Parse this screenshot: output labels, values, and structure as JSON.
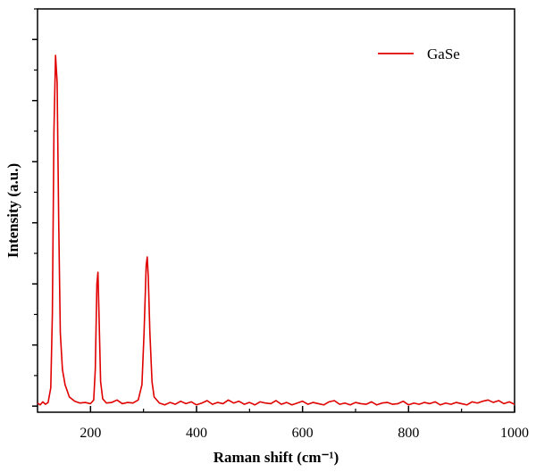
{
  "chart_data": {
    "type": "line",
    "x_label": "Raman shift (cm⁻¹)",
    "y_label": "Intensity (a.u.)",
    "xlim": [
      100,
      1000
    ],
    "ylim": [
      -0.1,
      6.5
    ],
    "xticks": [
      200,
      400,
      600,
      800,
      1000
    ],
    "minor_xticks": [
      300,
      500,
      700,
      900
    ],
    "yticks": [
      0,
      1,
      2,
      3,
      4,
      5,
      6
    ],
    "minor_yticks": [
      0.5,
      1.5,
      2.5,
      3.5,
      4.5,
      5.5,
      6.5
    ],
    "ytick_labels": false,
    "legend": "upper right",
    "x": [
      100,
      105,
      110,
      115,
      120,
      125,
      128,
      131,
      134,
      137,
      140,
      143,
      147,
      152,
      160,
      170,
      180,
      190,
      200,
      206,
      209,
      212,
      214,
      216,
      219,
      223,
      230,
      240,
      250,
      260,
      270,
      280,
      290,
      297,
      301,
      305,
      307,
      309,
      312,
      316,
      320,
      330,
      340,
      350,
      360,
      370,
      380,
      390,
      400,
      410,
      420,
      430,
      440,
      450,
      460,
      470,
      480,
      490,
      500,
      510,
      520,
      530,
      540,
      550,
      560,
      570,
      580,
      590,
      600,
      610,
      620,
      630,
      640,
      650,
      660,
      670,
      680,
      690,
      700,
      710,
      720,
      730,
      740,
      750,
      760,
      770,
      780,
      790,
      800,
      810,
      820,
      830,
      840,
      850,
      860,
      870,
      880,
      890,
      900,
      910,
      920,
      930,
      940,
      950,
      960,
      970,
      980,
      990,
      1000
    ],
    "series": [
      {
        "name": "GaSe",
        "color": "#e00000",
        "values": [
          0.05,
          0.02,
          0.07,
          0.03,
          0.06,
          0.3,
          1.5,
          4.5,
          5.74,
          5.3,
          3.0,
          1.2,
          0.6,
          0.35,
          0.15,
          0.08,
          0.05,
          0.06,
          0.04,
          0.1,
          0.6,
          2.0,
          2.19,
          1.5,
          0.4,
          0.12,
          0.05,
          0.06,
          0.1,
          0.04,
          0.06,
          0.05,
          0.1,
          0.35,
          1.2,
          2.3,
          2.44,
          2.1,
          1.2,
          0.4,
          0.15,
          0.05,
          0.02,
          0.06,
          0.03,
          0.08,
          0.04,
          0.07,
          0.02,
          0.05,
          0.09,
          0.03,
          0.06,
          0.04,
          0.1,
          0.05,
          0.08,
          0.03,
          0.06,
          0.02,
          0.07,
          0.05,
          0.04,
          0.09,
          0.03,
          0.06,
          0.02,
          0.05,
          0.08,
          0.03,
          0.06,
          0.04,
          0.02,
          0.07,
          0.09,
          0.03,
          0.05,
          0.02,
          0.06,
          0.04,
          0.03,
          0.07,
          0.02,
          0.05,
          0.06,
          0.03,
          0.04,
          0.08,
          0.02,
          0.05,
          0.03,
          0.06,
          0.04,
          0.07,
          0.02,
          0.05,
          0.03,
          0.06,
          0.04,
          0.02,
          0.07,
          0.05,
          0.08,
          0.1,
          0.06,
          0.09,
          0.04,
          0.07,
          0.03
        ]
      }
    ]
  }
}
